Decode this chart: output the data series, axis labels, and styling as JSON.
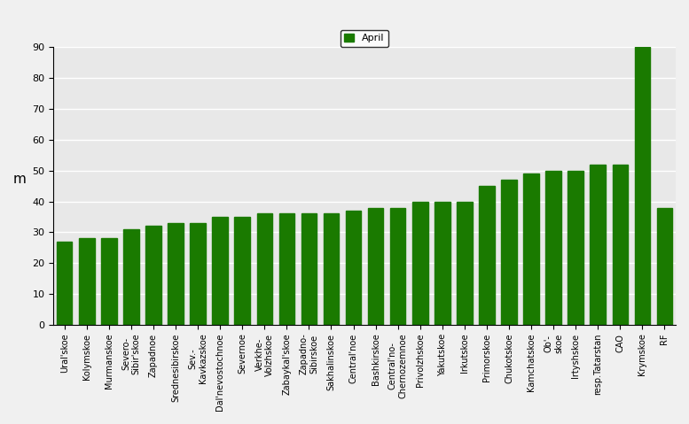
{
  "categories": [
    "Ural'skoe",
    "Kolymskoe",
    "Murmanskoe",
    "Severo-\nSibir'skoe",
    "Zapadnoe",
    "Srednesibirskoe",
    "Sev.-\nKavkazskoe",
    "Dal'nevostochnoe",
    "Severnoe",
    "Verkhe-\nVolzhskoe",
    "Zabaykal'skoe",
    "Zapadno-\nSibirskoe",
    "Sakhalinskoe",
    "Central'noe",
    "Bashkirskoe",
    "Central'no-\nChernozemnoe",
    "Privolzhskoe",
    "Yakutskoe",
    "Irkutskoe",
    "Primorskoe",
    "Chukotskoe",
    "Kamchatskoe",
    "Ob'-\nskoe",
    "Irtyshskoe",
    "resp.Tatarstan",
    "CAO",
    "Krymskoe",
    "RF"
  ],
  "values": [
    27,
    28,
    28,
    31,
    32,
    33,
    33,
    35,
    35,
    36,
    36,
    36,
    36,
    37,
    38,
    38,
    40,
    40,
    40,
    45,
    47,
    49,
    50,
    50,
    52,
    52,
    90,
    38
  ],
  "bar_color": "#1a7a00",
  "ylabel": "m",
  "ylim": [
    0,
    90
  ],
  "yticks": [
    0,
    10,
    20,
    30,
    40,
    50,
    60,
    70,
    80,
    90
  ],
  "legend_label": "April",
  "legend_color": "#1a7a00",
  "bg_color": "#e8e8e8",
  "grid_color": "#ffffff",
  "title_fontsize": 10,
  "tick_fontsize": 8,
  "ylabel_fontsize": 11
}
